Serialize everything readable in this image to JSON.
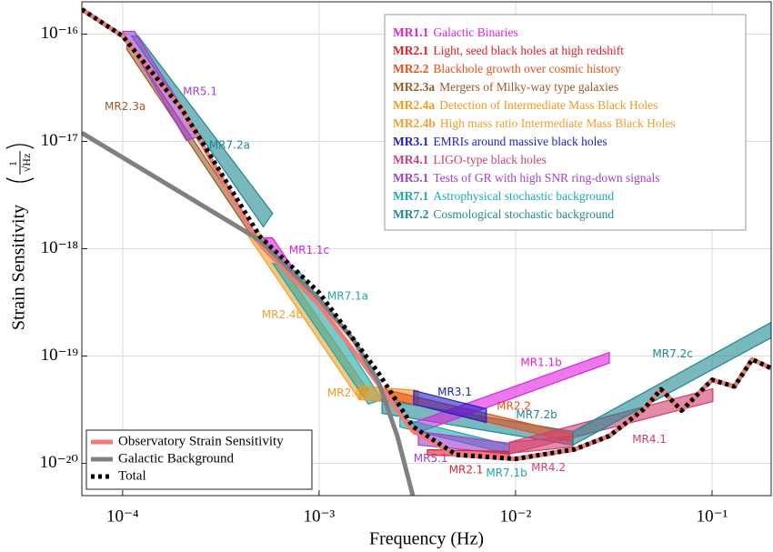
{
  "chart_data": {
    "type": "line",
    "xlabel": "Frequency (Hz)",
    "ylabel": "Strain Sensitivity",
    "ylabel_unit": {
      "numerator": "1",
      "denominator": "√Hz"
    },
    "xscale": "log",
    "yscale": "log",
    "grid": true,
    "xlim": [
      6.2e-05,
      0.2
    ],
    "ylim": [
      5e-21,
      2e-16
    ],
    "xticks": [
      {
        "value": 0.0001,
        "label": "10⁻⁴"
      },
      {
        "value": 0.001,
        "label": "10⁻³"
      },
      {
        "value": 0.01,
        "label": "10⁻²"
      },
      {
        "value": 0.1,
        "label": "10⁻¹"
      }
    ],
    "yticks": [
      {
        "value": 1e-20,
        "label": "10⁻²⁰"
      },
      {
        "value": 1e-19,
        "label": "10⁻¹⁹"
      },
      {
        "value": 1e-18,
        "label": "10⁻¹⁸"
      },
      {
        "value": 1e-17,
        "label": "10⁻¹⁷"
      },
      {
        "value": 1e-16,
        "label": "10⁻¹⁶"
      }
    ],
    "legend": "lower left",
    "series": [
      {
        "name": "Observatory Strain Sensitivity",
        "color": "#f07c78",
        "style": "solid",
        "x": [
          6.2e-05,
          0.0001,
          0.0002,
          0.0005,
          0.001,
          0.002,
          0.003,
          0.005,
          0.01,
          0.02,
          0.03,
          0.045,
          0.055,
          0.07,
          0.1,
          0.13,
          0.16,
          0.2
        ],
        "values": [
          1.7e-16,
          9.6e-17,
          2e-17,
          1.1e-18,
          3e-19,
          5.5e-20,
          2e-20,
          1.2e-20,
          1.1e-20,
          1.35e-20,
          1.8e-20,
          3.2e-20,
          4.9e-20,
          3.1e-20,
          6e-20,
          5.2e-20,
          9.3e-20,
          7.7e-20
        ]
      },
      {
        "name": "Galactic Background",
        "color": "#808080",
        "style": "solid",
        "x": [
          6.2e-05,
          0.0005,
          0.001,
          0.0015,
          0.002,
          0.0025,
          0.003
        ],
        "values": [
          1.2e-17,
          1.2e-18,
          3.4e-19,
          1.4e-19,
          5.8e-20,
          1.8e-20,
          5e-21
        ]
      },
      {
        "name": "Total",
        "color": "#000000",
        "style": "dotted",
        "x": [
          6.2e-05,
          0.0001,
          0.0002,
          0.0005,
          0.001,
          0.002,
          0.003,
          0.005,
          0.01,
          0.02,
          0.03,
          0.045,
          0.055,
          0.07,
          0.1,
          0.13,
          0.16,
          0.2
        ],
        "values": [
          1.7e-16,
          9.6e-17,
          2e-17,
          1.3e-18,
          3.9e-19,
          7e-20,
          2.2e-20,
          1.2e-20,
          1.1e-20,
          1.35e-20,
          1.8e-20,
          3.2e-20,
          4.9e-20,
          3.1e-20,
          6e-20,
          5.2e-20,
          9.3e-20,
          7.7e-20
        ]
      }
    ],
    "requirements": [
      {
        "id": "MR1.1",
        "description": "Galactic Binaries",
        "color": "#e020e0"
      },
      {
        "id": "MR2.1",
        "description": "Light, seed black holes at high redshift",
        "color": "#e0202a"
      },
      {
        "id": "MR2.2",
        "description": "Blackhole growth over cosmic history",
        "color": "#e8501a"
      },
      {
        "id": "MR2.3a",
        "description": "Mergers of Milky-way type galaxies",
        "color": "#9a5a2a"
      },
      {
        "id": "MR2.4a",
        "description": "Detection of Intermediate Mass Black Holes",
        "color": "#f09a20"
      },
      {
        "id": "MR2.4b",
        "description": "High mass ratio Intermediate Mass Black Holes",
        "color": "#f0a030"
      },
      {
        "id": "MR3.1",
        "description": "EMRIs around massive black holes",
        "color": "#2020c8"
      },
      {
        "id": "MR4.1",
        "description": "LIGO-type black holes",
        "color": "#d04070"
      },
      {
        "id": "MR5.1",
        "description": "Tests of GR with high SNR ring-down signals",
        "color": "#a040d0"
      },
      {
        "id": "MR7.1",
        "description": "Astrophysical stochastic background",
        "color": "#20a8a8"
      },
      {
        "id": "MR7.2",
        "description": "Cosmological stochastic background",
        "color": "#208890"
      }
    ],
    "regions": [
      {
        "label": "MR7.2a",
        "color": "#208890",
        "x": [
          0.000111,
          0.00012,
          0.00058,
          0.00052
        ],
        "y": [
          9.6e-17,
          9.6e-17,
          2.14e-18,
          1.6e-18
        ],
        "label_x": 0.00035,
        "label_y": 9.2e-18
      },
      {
        "label": "MR2.3a",
        "color": "#9a5a2a",
        "x": [
          0.000105,
          0.00047,
          0.00047,
          0.000105
        ],
        "y": [
          8.7e-17,
          1.45e-18,
          1.19e-18,
          7.2e-17
        ],
        "label_x": 0.000103,
        "label_y": 2.1e-17
      },
      {
        "label": "MR5.1",
        "color": "#a040d0",
        "x": [
          0.0001,
          0.000115,
          0.000248,
          0.000211
        ],
        "y": [
          1.06e-16,
          1.06e-16,
          1.12e-17,
          1.02e-17
        ],
        "label_x": 0.000248,
        "label_y": 2.9e-17
      },
      {
        "label": "MR2.4b",
        "color": "#f0a030",
        "x": [
          0.00042,
          0.00049,
          0.00178,
          0.0016
        ],
        "y": [
          1.45e-18,
          1.45e-18,
          4.77e-20,
          3.92e-20
        ],
        "label_x": 0.00065,
        "label_y": 2.4e-19
      },
      {
        "label": "MR1.1c",
        "color": "#e020e0",
        "x": [
          0.00052,
          0.00058,
          0.00072,
          0.00065
        ],
        "y": [
          1.26e-18,
          1.26e-18,
          7e-19,
          7e-19
        ],
        "label_x": 0.00089,
        "label_y": 9.6e-19
      },
      {
        "label": "MR7.1a",
        "color": "#20a8a8",
        "x": [
          0.00058,
          0.0008,
          0.00209,
          0.00178
        ],
        "y": [
          7.3e-19,
          6e-19,
          3.92e-20,
          3.56e-20
        ],
        "label_x": 0.0014,
        "label_y": 3.6e-19
      },
      {
        "label": "MR2.4a",
        "color": "#f09a20",
        "x": [
          0.0016,
          0.0032,
          0.0032,
          0.0016
        ],
        "y": [
          5.25e-20,
          4.77e-20,
          3.56e-20,
          3.92e-20
        ],
        "label_x": 0.0014,
        "label_y": 4.5e-20
      },
      {
        "label": "MR7.2b",
        "color": "#208890",
        "x": [
          0.00209,
          0.0196,
          0.0196,
          0.00209
        ],
        "y": [
          3.92e-20,
          1.98e-20,
          1.48e-20,
          2.92e-20
        ],
        "label_x": 0.0128,
        "label_y": 2.8e-20
      },
      {
        "label": "MR2.2",
        "color": "#e8501a",
        "x": [
          0.00209,
          0.0196,
          0.0196,
          0.00209
        ],
        "y": [
          4.96e-20,
          1.87e-20,
          1.57e-20,
          4.16e-20
        ],
        "label_x": 0.0098,
        "label_y": 3.4e-20
      },
      {
        "label": "MR1.1b",
        "color": "#e020e0",
        "x": [
          0.00303,
          0.03,
          0.03,
          0.00303
        ],
        "y": [
          2.4e-20,
          1.08e-19,
          8.6e-20,
          1.87e-20
        ],
        "label_x": 0.0135,
        "label_y": 8.6e-20
      },
      {
        "label": "MR3.1",
        "color": "#2020c8",
        "x": [
          0.00303,
          0.0071,
          0.0071,
          0.00303
        ],
        "y": [
          4.77e-20,
          3.22e-20,
          2.4e-20,
          3.56e-20
        ],
        "label_x": 0.0049,
        "label_y": 4.6e-20
      },
      {
        "label": "MR7.1b",
        "color": "#20a8a8",
        "x": [
          0.00258,
          0.0093,
          0.0093,
          0.00258
        ],
        "y": [
          2.65e-20,
          1.48e-20,
          1.22e-20,
          2.18e-20
        ],
        "label_x": 0.009,
        "label_y": 8.1e-21
      },
      {
        "label": "MR5.1",
        "color": "#a040d0",
        "x": [
          0.0032,
          0.0093,
          0.0093,
          0.0032
        ],
        "y": [
          1.98e-20,
          1.54e-20,
          1.22e-20,
          1.48e-20
        ],
        "label_x": 0.0037,
        "label_y": 1.1e-20
      },
      {
        "label": "MR2.1",
        "color": "#e0202a",
        "x": [
          0.00356,
          0.0093,
          0.0093,
          0.00356
        ],
        "y": [
          1.34e-20,
          1.29e-20,
          1.15e-20,
          1.19e-20
        ],
        "label_x": 0.0056,
        "label_y": 8.6e-21
      },
      {
        "label": "MR4.2",
        "color": "#d04070",
        "x": [
          0.0093,
          0.0196,
          0.0196,
          0.0093
        ],
        "y": [
          1.57e-20,
          1.8e-20,
          1.42e-20,
          1.24e-20
        ],
        "label_x": 0.0147,
        "label_y": 9.1e-21
      },
      {
        "label": "MR4.1",
        "color": "#d04070",
        "x": [
          0.0093,
          0.101,
          0.101,
          0.0093
        ],
        "y": [
          1.57e-20,
          4.96e-20,
          3.77e-20,
          1.22e-20
        ],
        "label_x": 0.048,
        "label_y": 1.66e-20
      },
      {
        "label": "MR7.2c",
        "color": "#208890",
        "x": [
          0.0196,
          0.2,
          0.2,
          0.0196
        ],
        "y": [
          1.98e-20,
          2.06e-19,
          1.48e-19,
          1.48e-20
        ],
        "label_x": 0.063,
        "label_y": 1.04e-19
      }
    ]
  }
}
